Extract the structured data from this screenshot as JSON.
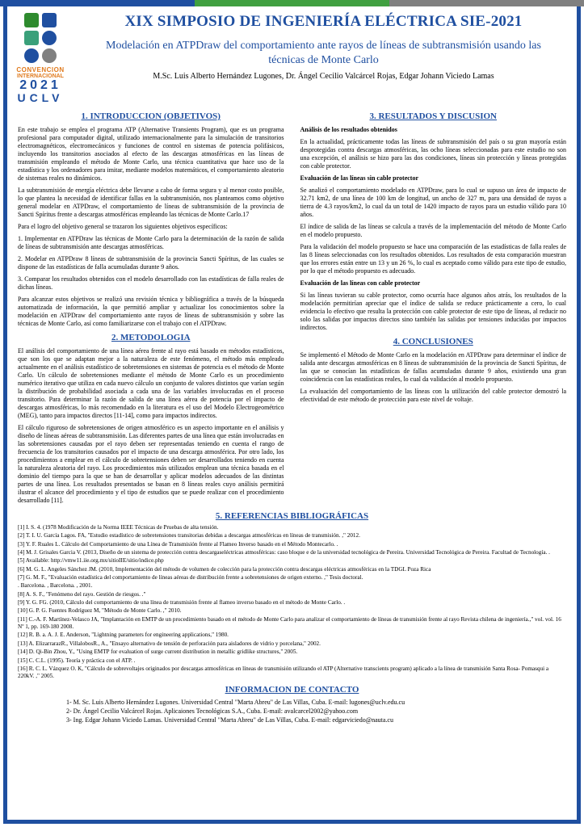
{
  "stripes": {
    "c1": "#1f4fa0",
    "c2": "#40a040",
    "c3": "#808080"
  },
  "logo": {
    "convencion": "CONVENCION",
    "internacional": "INTERNACIONAL",
    "year": "2021",
    "uclv": "UCLV"
  },
  "header": {
    "title": "XIX SIMPOSIO DE INGENIERÍA ELÉCTRICA SIE-2021",
    "subtitle": "Modelación en ATPDraw del comportamiento ante rayos de líneas de subtransmisión usando las técnicas de Monte Carlo",
    "authors": "M.Sc. Luis Alberto Hernández Lugones, Dr. Ángel Cecilio Valcárcel Rojas, Edgar Johann Viciedo Lamas"
  },
  "left": {
    "h1": "1. INTRODUCCION (OBJETIVOS)",
    "p1": "En este trabajo se emplea el programa ATP (Alternative Transients Program), que es un programa profesional para computador digital, utilizado internacionalmente para la simulación de transitorios electromagnéticos, electromecánicos y funciones de control en sistemas de potencia polifásicos, incluyendo los transitorios asociados al efecto de las descargas atmosféricas en las líneas de transmisión empleando el método de Monte Carlo, una técnica cuantitativa que hace uso de la estadística y los ordenadores para imitar, mediante modelos matemáticos, el comportamiento aleatorio de sistemas reales no dinámicos.",
    "p2": "La subtransmisión de energía eléctrica debe llevarse a cabo de forma segura y al menor costo posible, lo que plantea la necesidad de identificar fallas en la subtransmisión, nos planteamos como objetivo general modelar en ATPDraw, el comportamiento de líneas de subtransmisión de la provincia de Sancti Spíritus frente a descargas atmosféricas empleando las técnicas de Monte Carlo.17",
    "p3": "Para el logro del objetivo general se trazaron los siguientes objetivos específicos:",
    "p4": "1.   Implementar en ATPDraw las técnicas de Monte Carlo para la determinación de la razón de salida de líneas de subtransmisión ante descargas atmosféricas.",
    "p5": "2.   Modelar en ATPDraw 8 líneas de subtransmisión de la provincia Sancti Spíritus, de las cuales se dispone de las estadísticas de falla acumuladas durante 9 años.",
    "p6": "3.   Comparar los resultados obtenidos con el modelo desarrollado con las estadísticas de falla reales de dichas líneas.",
    "p7": "Para alcanzar estos objetivos se realizó una revisión técnica y bibliográfica a través de la búsqueda automatizada de información, la que permitió ampliar y actualizar los conocimientos sobre la modelación en ATPDraw del comportamiento ante rayos de líneas de subtransmisión y sobre las técnicas de Monte Carlo, así como familiarizarse con el trabajo con el ATPDraw.",
    "h2": "2. METODOLOGIA",
    "p8": "El análisis del comportamiento de una línea aérea frente al rayo está basado en métodos estadísticos, que son los que se adaptan mejor a la naturaleza de este fenómeno, el método más empleado actualmente en el análisis estadístico de sobretensiones en sistemas de potencia es el método de Monte Carlo. Un cálculo de sobretensiones mediante el método de Monte Carlo es un procedimiento numérico iterativo que utiliza en cada nuevo cálculo un conjunto de valores distintos que varían según la distribución de probabilidad asociada a cada una de las variables involucradas en el proceso transitorio. Para determinar la razón de salida de una línea aérea de potencia por el impacto de descargas atmosféricas, lo más recomendado en la literatura es el uso del Modelo Electrogeométrico (MEG), tanto para impactos directos [11-14], como para impactos indirectos.",
    "p9": "El cálculo riguroso de sobretensiones de origen atmosférico es un aspecto importante en el análisis y diseño de líneas aéreas de subtransmisión. Las diferentes partes de una línea que están involucradas en las sobretensiones causadas por el rayo deben ser representadas teniendo en cuenta el rango de frecuencia de los transitorios causados por el impacto de una descarga atmosférica. Por otro lado, los procedimientos a emplear en el cálculo de sobretensiones deben ser desarrollados teniendo en cuenta la naturaleza aleatoria del rayo. Los procedimientos más utilizados emplean una técnica basada en el dominio del tiempo para la que se han de desarrollar y aplicar modelos adecuados de las distintas partes de una línea. Los resultados presentados se basan en 8 líneas reales cuyo análisis permitirá ilustrar el alcance del procedimiento y el tipo de estudios que se puede realizar con el procedimiento desarrollado [11]."
  },
  "right": {
    "h1": "3. RESULTADOS Y DISCUSION",
    "b1": "Análisis de los resultados obtenidos",
    "p1": "En la actualidad, prácticamente todas las líneas de subtransmisión del país o su gran mayoría están desprotegidas contra descargas atmosféricas, las ocho líneas seleccionadas para este estudio no son una excepción, el análisis se hizo para las dos condiciones, líneas sin protección y líneas protegidas con cable protector.",
    "b2": "Evaluación de las líneas sin cable protector",
    "p2": "Se analizó el comportamiento modelado en ATPDraw, para lo cual se supuso un área de impacto de 32.71 km2, de una línea de 100 km de longitud, un ancho de 327 m, para una densidad de rayos a tierra de 4.3 rayos/km2, lo cual da un total de 1420 impacto de rayos para un estudio válido para 10 años.",
    "p3": "El índice de salida de las líneas se calcula a través de la implementación del método de Monte Carlo en el modelo propuesto.",
    "p4": "Para la validación del modelo propuesto se hace una comparación de las estadísticas de falla reales de las 8 líneas seleccionadas con los resultados obtenidos. Los resultados de esta comparación muestran que los errores están entre un 13 y un 26 %, lo cual es aceptado como válido para este tipo de estudio, por lo que el método propuesto es adecuado.",
    "b3": "Evaluación de las líneas con cable protector",
    "p5": "Si las líneas tuvieran su cable protector, como ocurría hace algunos años atrás, los resultados de la modelación permitirían apreciar que el índice de salida se reduce prácticamente a cero, lo cual evidencia lo efectivo que resulta la protección con cable protector de este tipo de líneas, al reducir no solo las salidas por impactos directos sino también las salidas por tensiones inducidas por impactos indirectos.",
    "h2": "4. CONCLUSIONES",
    "p6": "Se implementó el Método de Monte Carlo en la modelación en ATPDraw para determinar el índice de salida ante descargas atmosféricas en 8 líneas de subtransmisión de la provincia de Sancti Spíritus, de las que se conocían las estadísticas de fallas acumuladas durante 9 años, existiendo una gran coincidencia con las estadísticas reales, lo cual da validación al modelo propuesto.",
    "p7": "La evaluación del comportamiento de las líneas con la utilización del cable protector demostró la efectividad de este método de protección para este nivel de voltaje."
  },
  "refs": {
    "h": "5. REFERENCIAS BIBLIOGRÁFICAS",
    "items": [
      "[1]    I. S. 4. (1978 Modificación de la Norma IEEE Técnicas de Pruebas de alta tensión.",
      "[2]    T. I. U. García Lagos. FA, \"Estudio estadístico de sobretensiones transitorias debidas a descargas atmosféricas en líneas de transmisión. ,\" 2012.",
      "[3]    Y. F. Ruales L. Cálculo del Comportamiento de una Línea de Transmisión frente al Flameo Inverso basado en el Método Montecarlo. .",
      "[4]    M. J. Grisales Garcia V. (2013, Diseño de un sistema de protección contra descargaseléctricas atmosféricas: caso bloque e de la universidad tecnológica de Pereira. Universidad Tecnológica de Pereira. Facultad de Tecnología. .",
      "[5]    Available: http://vmw11.iie.org.mx/sitioIIE/sitio/indice.php",
      "[6]    M. G. L. Angeles Sánchez JM. (2010, Implementación del método de volumen de colección para la protección contra descargas eléctricas atmosféricas en la TDGL Poza Rica",
      "[7]    G. M. F., \"Evaluación estadística del comportamiento de líneas aéreas de distribución frente a sobretensiones de origen externo. ,\" Tesis doctoral.",
      "     . Barcelona. , Barcelona. , 2001.",
      "[8]    A. S. F., \"Fenómeno del rayo. Gestión de riesgos. .\"",
      "[9]    Y. G. FG. (2010, Cálculo del comportamiento de una línea de transmisión frente al flameo inverso basado en el método de Monte Carlo. .",
      "[10]   G. P. G. Fuentes Rodríguez M, \"Método de Monte Carlo. ,\" 2010.",
      "[11]   C.-A. F. Martínez-Velasco JA, \"Implantación en EMTP de un procedimiento basado en el método de Monte Carlo para analizar el comportamiento de líneas de transmisión frente al rayo Revista chilena de ingeniería.,\" vol. vol. 16 Nº 1, pp. 169-180 2008.",
      "[12]   R. B. a. A. J. E. Anderson, \"Lightning parameters for engineering applications,\" 1980.",
      "[13]   A. ElizarrarazR., VillalobosR., A., \"Ensayo alternativo de tensión de perforación para aisladores de vidrio y porcelana,\" 2002.",
      "[14]   D. Qi-Bin Zhou, Y., \"Using EMTP for evaluation of surge current distribution in metallic gridlike structures,\" 2005.",
      "[15]   C. C.L. (1995). Teoría y práctica con el ATP. .",
      "[16]   R. C. L. Vázquez O. K, \"Cálculo de sobrevoltajes originados por descargas atmosféricas en líneas de transmisión utilizando el ATP (Alternative transcients program) aplicado a la línea de transmisión Santa Rosa- Pomasqui a 220kV. ,\" 2005."
    ]
  },
  "contact": {
    "h": "INFORMACION DE CONTACTO",
    "lines": [
      "1- M. Sc. Luis Alberto Hernández Lugones. Universidad Central \"Marta Abreu\" de Las Villas, Cuba. E-mail: lugones@uclv.edu.cu",
      "2- Dr. Ángel Cecilio Valcárcel Rojas. Aplicaiones Tecnológicas S.A., Cuba. E-mail: avalcarcel2002@yahoo.com",
      "3- Ing. Edgar Johann Viciedo Lamas. Universidad Central \"Marta Abreu\" de Las Villas, Cuba. E-mail: edgarviciedo@nauta.cu"
    ]
  }
}
